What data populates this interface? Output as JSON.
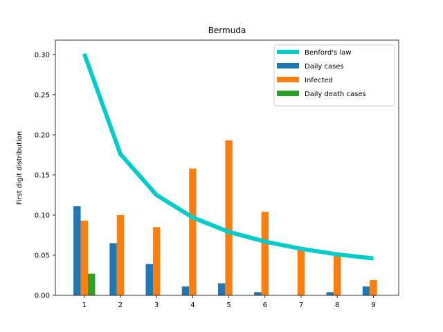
{
  "chart_data": {
    "type": "bar",
    "title": "Bermuda",
    "xlabel": "",
    "ylabel": "First digit distribution",
    "categories": [
      "1",
      "2",
      "3",
      "4",
      "5",
      "6",
      "7",
      "8",
      "9"
    ],
    "ylim": [
      0,
      0.3
    ],
    "yticks": [
      "0.00",
      "0.05",
      "0.10",
      "0.15",
      "0.20",
      "0.25",
      "0.30"
    ],
    "legend_position": "top-right",
    "series": [
      {
        "name": "Benford's law",
        "kind": "line",
        "color": "#00cccc",
        "values": [
          0.301,
          0.176,
          0.125,
          0.097,
          0.079,
          0.067,
          0.058,
          0.051,
          0.046
        ]
      },
      {
        "name": "Daily cases",
        "kind": "bar",
        "color": "#1f77b4",
        "values": [
          0.111,
          0.065,
          0.039,
          0.011,
          0.015,
          0.004,
          0.0,
          0.004,
          0.011
        ]
      },
      {
        "name": "Infected",
        "kind": "bar",
        "color": "#ff7f0e",
        "values": [
          0.093,
          0.1,
          0.085,
          0.158,
          0.193,
          0.104,
          0.06,
          0.05,
          0.019
        ]
      },
      {
        "name": "Daily death cases",
        "kind": "bar",
        "color": "#2ca02c",
        "values": [
          0.027,
          0.0,
          0.0,
          0.0,
          0.0,
          0.0,
          0.0,
          0.0,
          0.0
        ]
      }
    ]
  }
}
